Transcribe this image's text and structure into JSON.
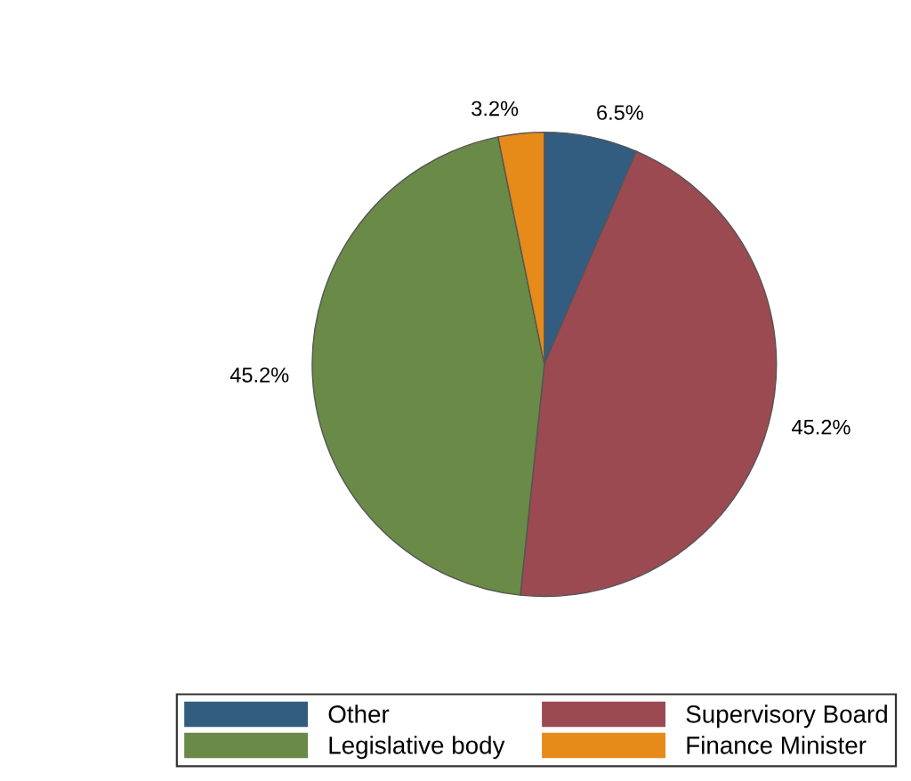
{
  "chart_data": {
    "type": "pie",
    "categories": [
      "Other",
      "Supervisory Board",
      "Legislative body",
      "Finance Minister"
    ],
    "values": [
      6.5,
      45.2,
      45.2,
      3.2
    ],
    "value_labels": [
      "6.5%",
      "45.2%",
      "45.2%",
      "3.2%"
    ],
    "colors": [
      "#335c81",
      "#9b4a52",
      "#6a8a47",
      "#e68a1a"
    ],
    "legend": "bottom"
  }
}
